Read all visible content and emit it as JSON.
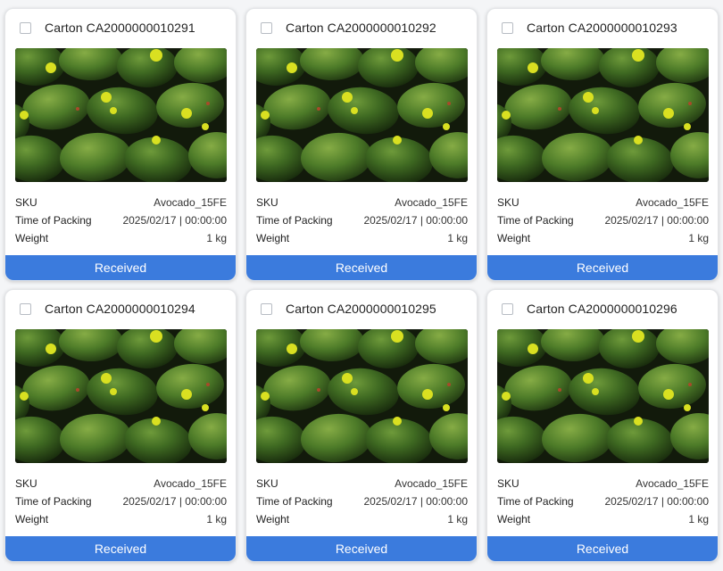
{
  "info_labels": {
    "sku": "SKU",
    "time_of_packing": "Time of Packing",
    "weight": "Weight"
  },
  "colors": {
    "status_bar": "#3b7bdd",
    "card_bg": "#ffffff",
    "page_bg": "#f4f5f7"
  },
  "cards": [
    {
      "title": "Carton CA2000000010291",
      "sku": "Avocado_15FE",
      "time_of_packing": "2025/02/17 | 00:00:00",
      "weight": "1 kg",
      "status": "Received",
      "selected": false,
      "image": "avocado-photo"
    },
    {
      "title": "Carton CA2000000010292",
      "sku": "Avocado_15FE",
      "time_of_packing": "2025/02/17 | 00:00:00",
      "weight": "1 kg",
      "status": "Received",
      "selected": false,
      "image": "avocado-photo"
    },
    {
      "title": "Carton CA2000000010293",
      "sku": "Avocado_15FE",
      "time_of_packing": "2025/02/17 | 00:00:00",
      "weight": "1 kg",
      "status": "Received",
      "selected": false,
      "image": "avocado-photo"
    },
    {
      "title": "Carton CA2000000010294",
      "sku": "Avocado_15FE",
      "time_of_packing": "2025/02/17 | 00:00:00",
      "weight": "1 kg",
      "status": "Received",
      "selected": false,
      "image": "avocado-photo"
    },
    {
      "title": "Carton CA2000000010295",
      "sku": "Avocado_15FE",
      "time_of_packing": "2025/02/17 | 00:00:00",
      "weight": "1 kg",
      "status": "Received",
      "selected": false,
      "image": "avocado-photo"
    },
    {
      "title": "Carton CA2000000010296",
      "sku": "Avocado_15FE",
      "time_of_packing": "2025/02/17 | 00:00:00",
      "weight": "1 kg",
      "status": "Received",
      "selected": false,
      "image": "avocado-photo"
    }
  ]
}
